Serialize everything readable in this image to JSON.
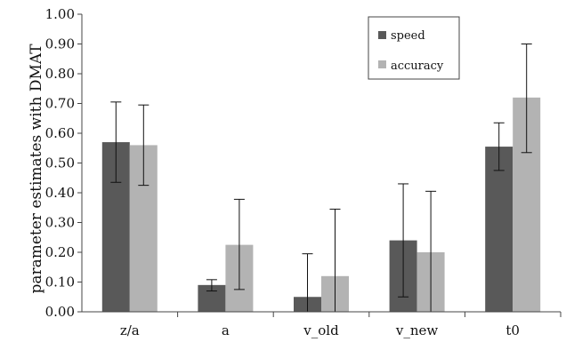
{
  "chart_data": {
    "type": "bar",
    "title": "",
    "xlabel": "",
    "ylabel": "parameter estimates with DMAT",
    "ylim": [
      0,
      1
    ],
    "ytick_step": 0.1,
    "grid": false,
    "legend_position": "top-right",
    "categories": [
      "z/a",
      "a",
      "v_old",
      "v_new",
      "t0"
    ],
    "series": [
      {
        "name": "speed",
        "color": "#595959",
        "values": [
          0.57,
          0.09,
          0.05,
          0.24,
          0.555
        ],
        "error_low": [
          0.435,
          0.07,
          0.0,
          0.05,
          0.475
        ],
        "error_high": [
          0.705,
          0.108,
          0.195,
          0.43,
          0.635
        ]
      },
      {
        "name": "accuracy",
        "color": "#b3b3b3",
        "values": [
          0.56,
          0.225,
          0.12,
          0.2,
          0.72
        ],
        "error_low": [
          0.425,
          0.075,
          0.0,
          0.0,
          0.535
        ],
        "error_high": [
          0.695,
          0.378,
          0.345,
          0.405,
          0.9
        ]
      }
    ]
  }
}
